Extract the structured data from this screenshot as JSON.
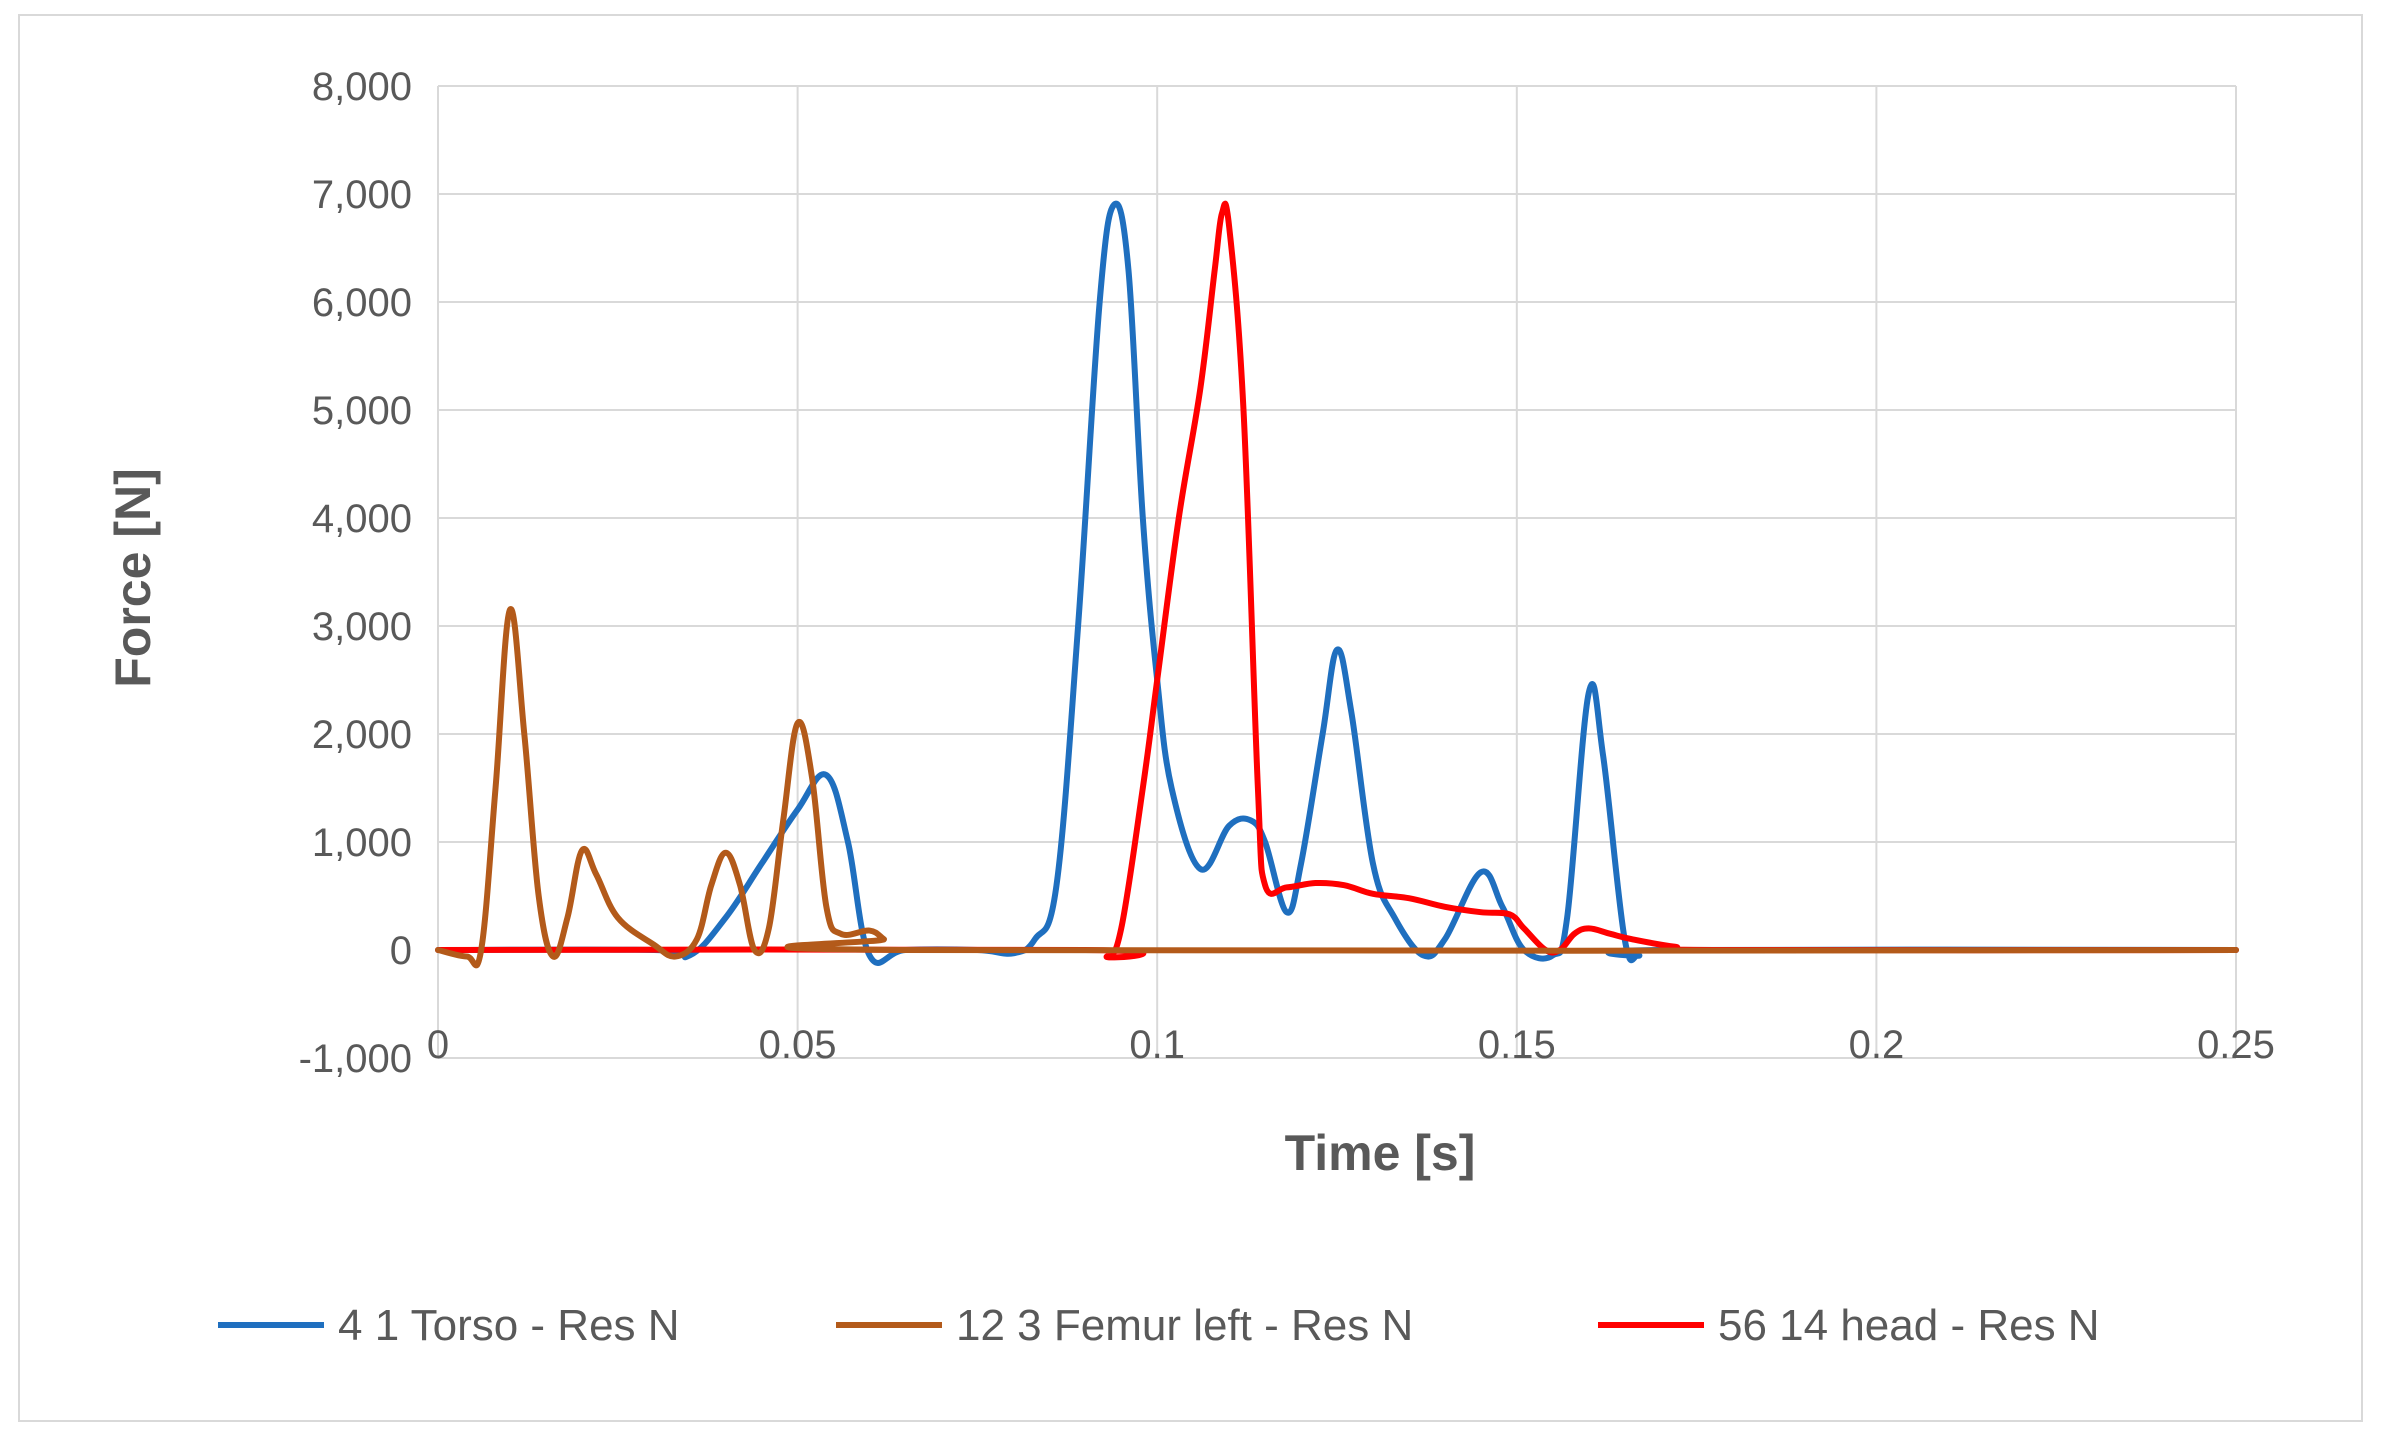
{
  "chart_data": {
    "type": "line",
    "title": "",
    "xlabel": "Time [s]",
    "ylabel": "Force [N]",
    "xlim": [
      0,
      0.25
    ],
    "ylim": [
      -1000,
      8000
    ],
    "grid": true,
    "legend_position": "bottom",
    "x_ticks": [
      "0",
      "0.05",
      "0.1",
      "0.15",
      "0.2",
      "0.25"
    ],
    "y_ticks": [
      "-1,000",
      "0",
      "1,000",
      "2,000",
      "3,000",
      "4,000",
      "5,000",
      "6,000",
      "7,000",
      "8,000"
    ],
    "series": [
      {
        "name": "4 1 Torso - Res N",
        "color": "#1f6fbf",
        "points": [
          [
            0,
            0
          ],
          [
            0.03,
            0
          ],
          [
            0.035,
            -50
          ],
          [
            0.04,
            300
          ],
          [
            0.045,
            800
          ],
          [
            0.05,
            1300
          ],
          [
            0.054,
            1620
          ],
          [
            0.057,
            1000
          ],
          [
            0.06,
            -50
          ],
          [
            0.065,
            0
          ],
          [
            0.075,
            0
          ],
          [
            0.08,
            -30
          ],
          [
            0.083,
            100
          ],
          [
            0.086,
            600
          ],
          [
            0.089,
            3000
          ],
          [
            0.092,
            6000
          ],
          [
            0.094,
            6900
          ],
          [
            0.096,
            6300
          ],
          [
            0.098,
            4000
          ],
          [
            0.1,
            2500
          ],
          [
            0.102,
            1500
          ],
          [
            0.106,
            750
          ],
          [
            0.11,
            1150
          ],
          [
            0.113,
            1200
          ],
          [
            0.115,
            1000
          ],
          [
            0.118,
            350
          ],
          [
            0.12,
            800
          ],
          [
            0.123,
            2000
          ],
          [
            0.125,
            2780
          ],
          [
            0.127,
            2200
          ],
          [
            0.13,
            800
          ],
          [
            0.133,
            300
          ],
          [
            0.137,
            -50
          ],
          [
            0.14,
            100
          ],
          [
            0.145,
            720
          ],
          [
            0.148,
            400
          ],
          [
            0.151,
            0
          ],
          [
            0.155,
            -50
          ],
          [
            0.157,
            300
          ],
          [
            0.16,
            2380
          ],
          [
            0.162,
            1800
          ],
          [
            0.165,
            100
          ],
          [
            0.167,
            -50
          ],
          [
            0.17,
            0
          ],
          [
            0.25,
            0
          ]
        ]
      },
      {
        "name": "12 3 Femur left - Res N",
        "color": "#b35a1a",
        "points": [
          [
            0,
            0
          ],
          [
            0.004,
            -60
          ],
          [
            0.006,
            0
          ],
          [
            0.008,
            1500
          ],
          [
            0.01,
            3150
          ],
          [
            0.012,
            2000
          ],
          [
            0.014,
            500
          ],
          [
            0.016,
            -60
          ],
          [
            0.018,
            300
          ],
          [
            0.02,
            920
          ],
          [
            0.022,
            700
          ],
          [
            0.025,
            300
          ],
          [
            0.03,
            50
          ],
          [
            0.033,
            -60
          ],
          [
            0.036,
            100
          ],
          [
            0.038,
            600
          ],
          [
            0.04,
            900
          ],
          [
            0.042,
            600
          ],
          [
            0.044,
            0
          ],
          [
            0.046,
            200
          ],
          [
            0.048,
            1200
          ],
          [
            0.05,
            2100
          ],
          [
            0.052,
            1600
          ],
          [
            0.054,
            400
          ],
          [
            0.056,
            150
          ],
          [
            0.06,
            180
          ],
          [
            0.062,
            100
          ],
          [
            0.064,
            0
          ],
          [
            0.25,
            0
          ]
        ]
      },
      {
        "name": "56 14 head - Res N",
        "color": "#ff0000",
        "points": [
          [
            0,
            0
          ],
          [
            0.09,
            0
          ],
          [
            0.093,
            -60
          ],
          [
            0.095,
            200
          ],
          [
            0.098,
            1500
          ],
          [
            0.1,
            2500
          ],
          [
            0.103,
            4000
          ],
          [
            0.106,
            5200
          ],
          [
            0.108,
            6300
          ],
          [
            0.109,
            6820
          ],
          [
            0.11,
            6700
          ],
          [
            0.112,
            5000
          ],
          [
            0.114,
            1500
          ],
          [
            0.115,
            600
          ],
          [
            0.118,
            580
          ],
          [
            0.122,
            620
          ],
          [
            0.126,
            600
          ],
          [
            0.13,
            520
          ],
          [
            0.135,
            480
          ],
          [
            0.14,
            400
          ],
          [
            0.145,
            350
          ],
          [
            0.149,
            330
          ],
          [
            0.151,
            200
          ],
          [
            0.154,
            0
          ],
          [
            0.156,
            0
          ],
          [
            0.158,
            150
          ],
          [
            0.16,
            200
          ],
          [
            0.163,
            150
          ],
          [
            0.166,
            100
          ],
          [
            0.172,
            30
          ],
          [
            0.178,
            0
          ],
          [
            0.25,
            0
          ]
        ]
      }
    ]
  }
}
